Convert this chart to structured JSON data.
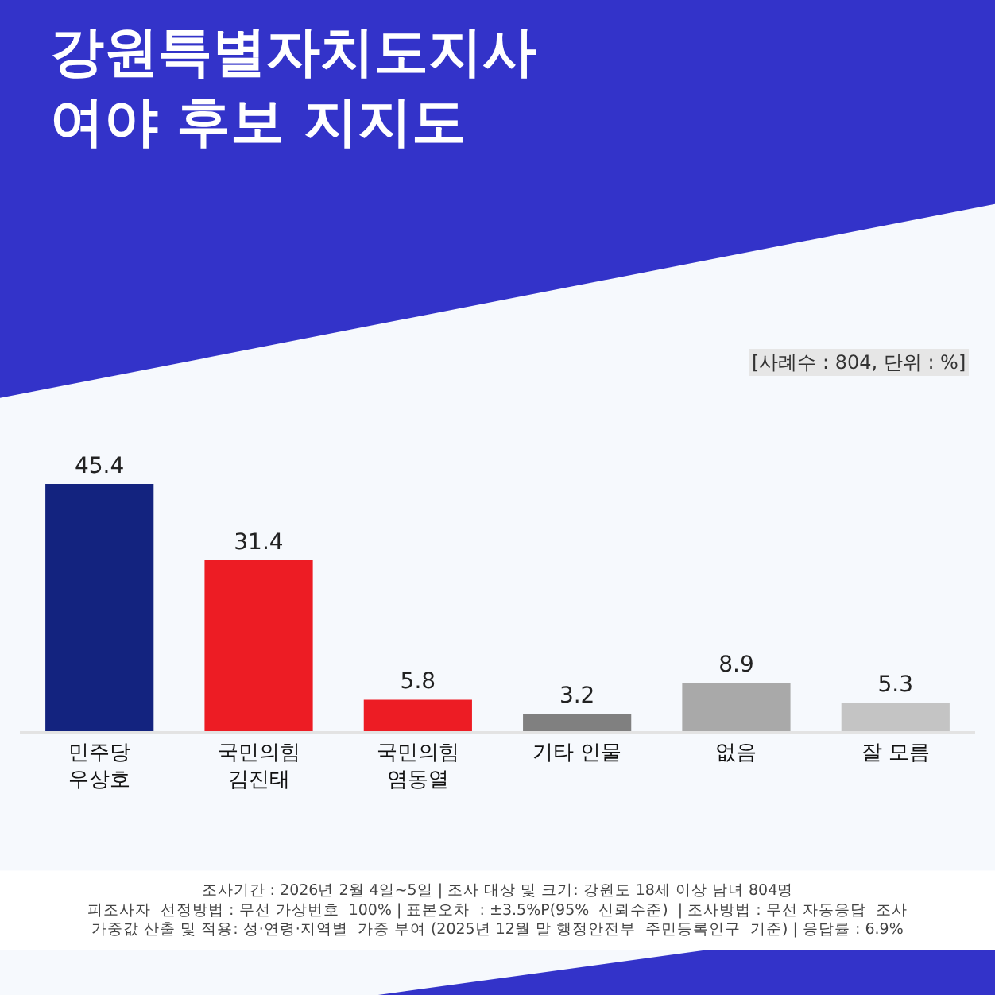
{
  "chart_data": {
    "type": "bar",
    "title": "강원특별자치도지사\n여야 후보 지지도",
    "subtitle": "[사례수 : 804, 단위 : %]",
    "categories": [
      "민주당\n우상호",
      "국민의힘\n김진태",
      "국민의힘\n염동열",
      "기타 인물",
      "없음",
      "잘 모름"
    ],
    "values": [
      45.4,
      31.4,
      5.8,
      3.2,
      8.9,
      5.3
    ],
    "colors": [
      "#13237f",
      "#ed1c24",
      "#ed1c24",
      "#808080",
      "#a9a9a9",
      "#c4c4c4"
    ],
    "data_labels": true,
    "tick_labels": "x",
    "annotations": [
      "조사기간 : 2026년 2월 4일~5일 | 조사 대상 및 크기: 강원도 18세 이상 남녀 804명\n피조사자  선정방법 : 무선 가상번호  100% | 표본오차  : ±3.5%P(95%  신뢰수준)  | 조사방법 : 무선 자동응답  조사\n가중값 산출 및 적용: 성·연령·지역별  가중 부여 (2025년 12월 말 행정안전부  주민등록인구  기준) | 응답률 : 6.9%"
    ]
  }
}
